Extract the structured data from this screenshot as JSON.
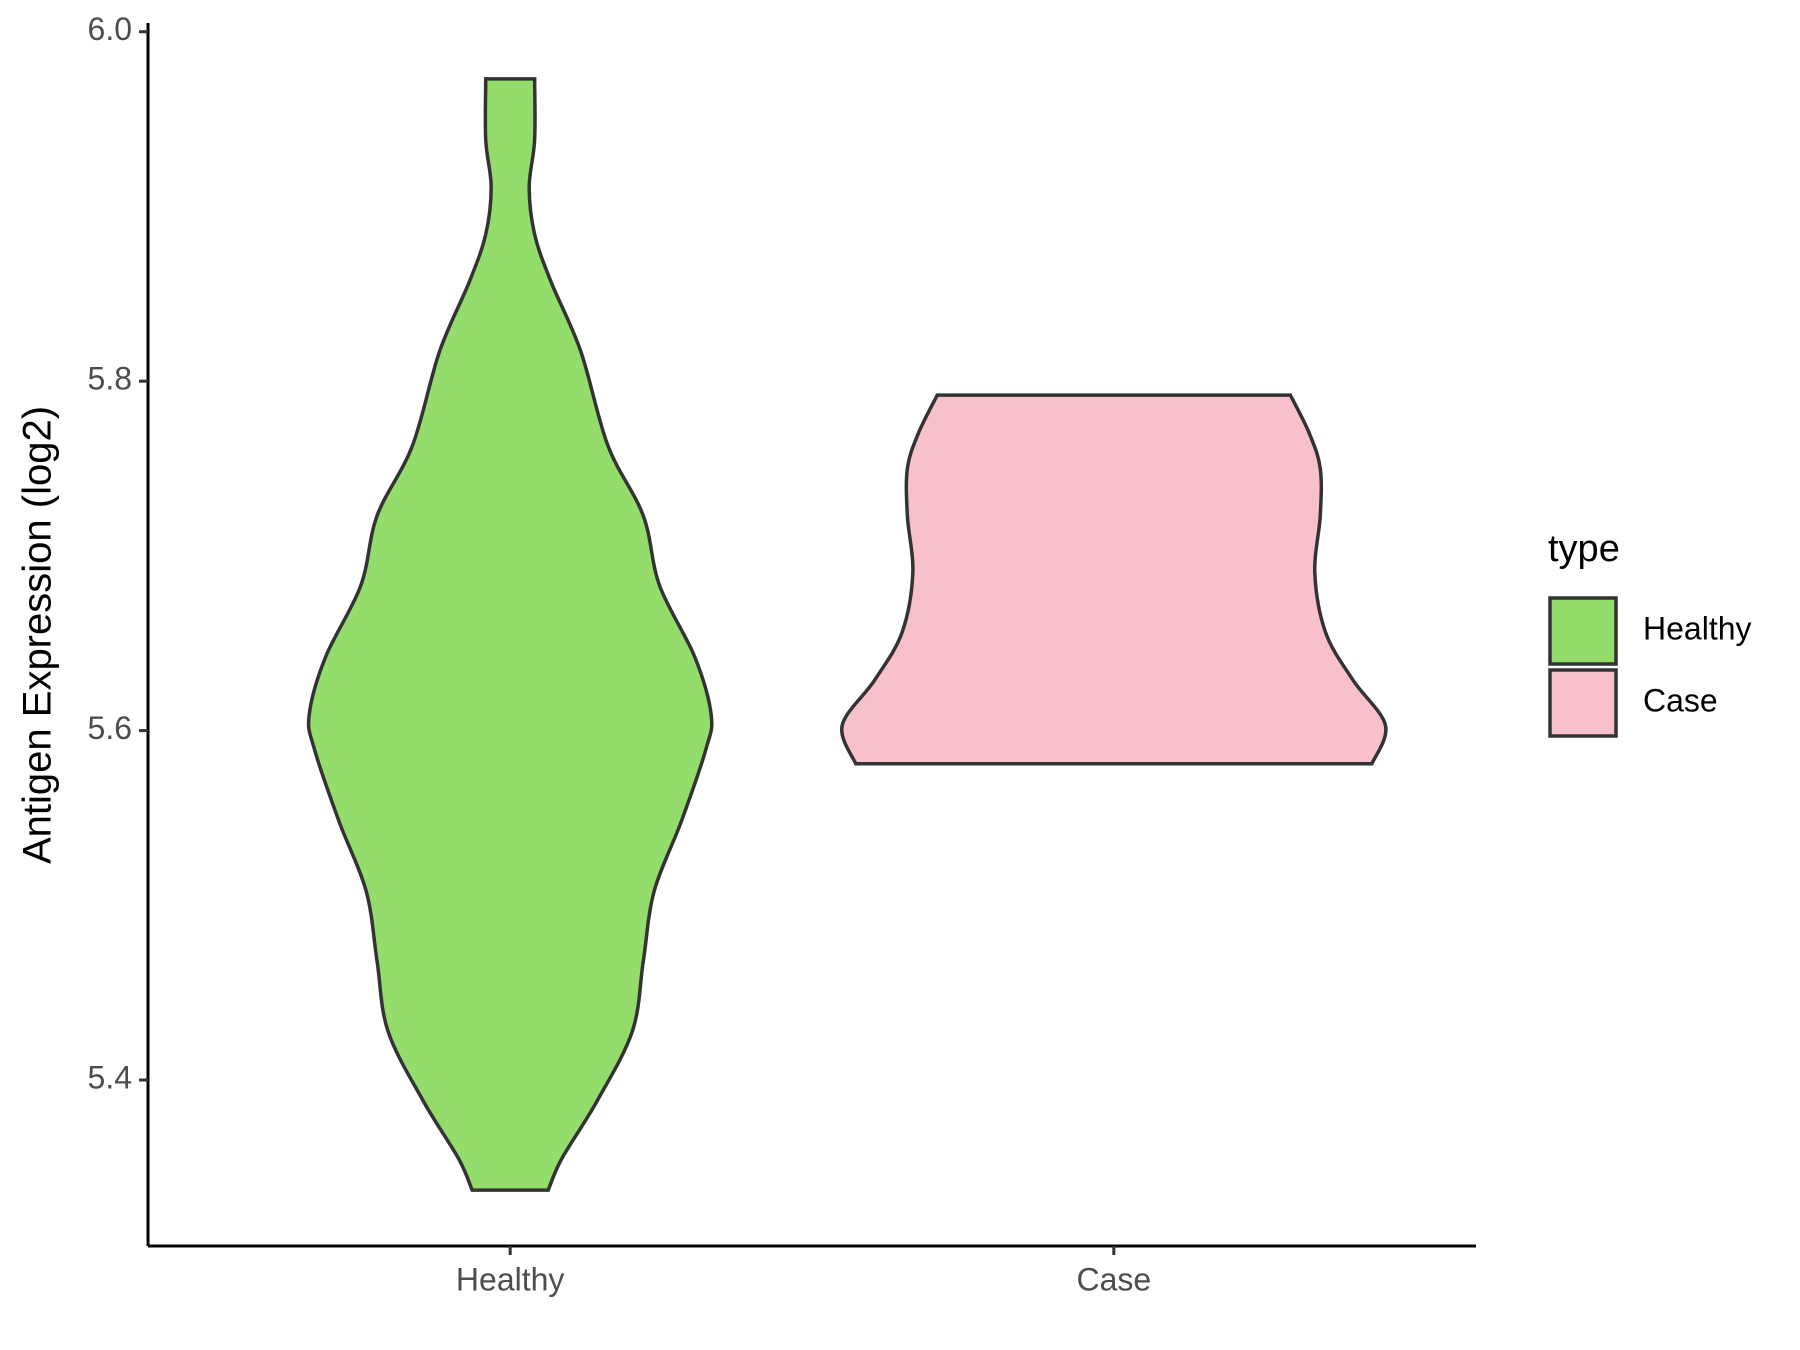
{
  "chart_data": {
    "type": "violin",
    "y_label": "Antigen Expression (log2)",
    "categories": [
      "Healthy",
      "Case"
    ],
    "legend_title": "type",
    "legend_position": "right",
    "ylim": [
      5.305,
      6.005
    ],
    "yticks": [
      {
        "value": 5.4,
        "label": "5.4"
      },
      {
        "value": 5.6,
        "label": "5.6"
      },
      {
        "value": 5.8,
        "label": "5.8"
      },
      {
        "value": 6.0,
        "label": "6.0"
      }
    ],
    "series": [
      {
        "name": "Healthy",
        "color": "#94dc6b",
        "y": [
          5.337,
          5.355,
          5.388,
          5.428,
          5.468,
          5.508,
          5.548,
          5.589,
          5.609,
          5.642,
          5.683,
          5.723,
          5.763,
          5.817,
          5.857,
          5.884,
          5.911,
          5.938,
          5.973
        ],
        "widths": [
          0.14,
          0.19,
          0.32,
          0.45,
          0.49,
          0.53,
          0.63,
          0.72,
          0.74,
          0.68,
          0.55,
          0.49,
          0.36,
          0.26,
          0.15,
          0.09,
          0.07,
          0.09,
          0.09
        ]
      },
      {
        "name": "Case",
        "color": "#f7c0cb",
        "y": [
          5.581,
          5.603,
          5.629,
          5.656,
          5.69,
          5.723,
          5.75,
          5.77,
          5.792
        ],
        "widths": [
          0.95,
          1.0,
          0.88,
          0.78,
          0.74,
          0.76,
          0.76,
          0.72,
          0.65
        ]
      }
    ]
  }
}
